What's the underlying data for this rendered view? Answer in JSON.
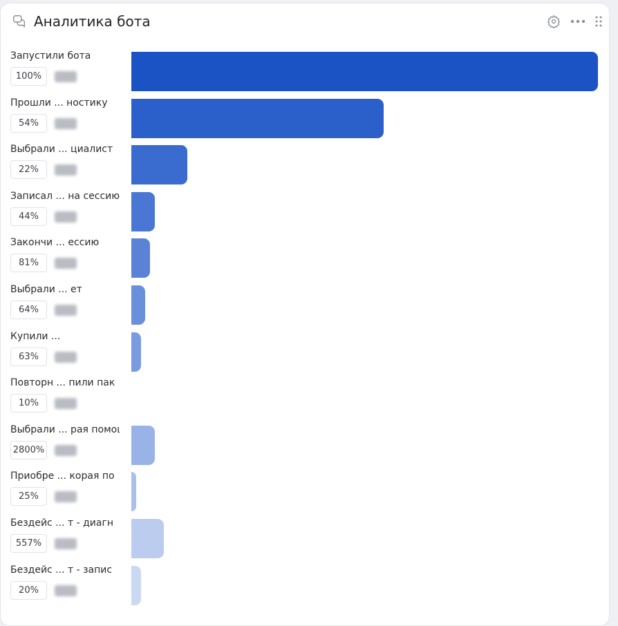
{
  "header": {
    "title": "Аналитика бота",
    "icon": "chat-bubbles-icon"
  },
  "toolbar": {
    "icons": [
      "gear-icon",
      "more-icon",
      "drag-handle-icon"
    ]
  },
  "chart_data": {
    "type": "bar",
    "orientation": "horizontal",
    "title": "Аналитика бота",
    "categories": [
      "Запустили бота",
      "Прошли ... ностику",
      "Выбрали ... циалист",
      "Записал ... на сессию",
      "Закончи ... ессию",
      "Выбрали ... ет",
      "Купили ...",
      "Повторн ... пили пак",
      "Выбрали ... рая помощь",
      "Приобре ... корая по",
      "Бездейс ... т - диагн",
      "Бездейс ... т - запис"
    ],
    "percent_labels": [
      "100%",
      "54%",
      "22%",
      "44%",
      "81%",
      "64%",
      "63%",
      "10%",
      "2800%",
      "25%",
      "557%",
      "20%"
    ],
    "relative_values": [
      1.0,
      0.54,
      0.12,
      0.05,
      0.04,
      0.03,
      0.02,
      0.0,
      0.05,
      0.01,
      0.07,
      0.02
    ],
    "colors": [
      "#1b53c5",
      "#2b5fca",
      "#3a6bcf",
      "#4a77d3",
      "#5a83d7",
      "#6a8fdb",
      "#7a9bdf",
      "#8aa7e3",
      "#9ab3e7",
      "#aabfea",
      "#bbccee",
      "#cad8f2"
    ]
  }
}
